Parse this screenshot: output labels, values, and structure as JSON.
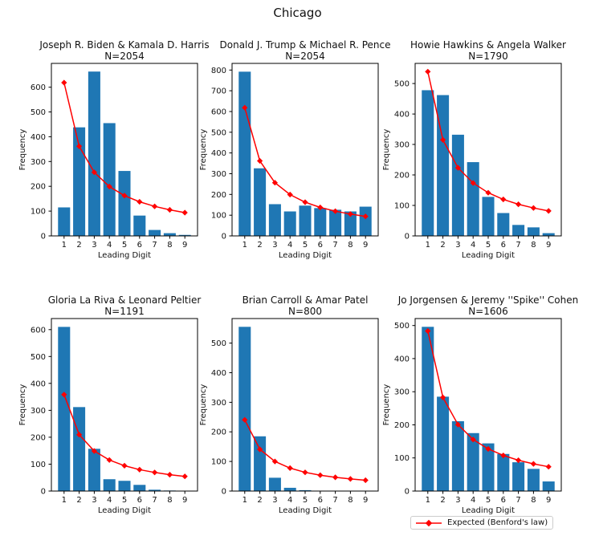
{
  "figure": {
    "title": "Chicago"
  },
  "legend": {
    "label": "Expected (Benford's law)",
    "marker": "red-diamond-line"
  },
  "colors": {
    "bar": "#1f77b4",
    "expected_line": "#ff0000",
    "axis": "#000000",
    "text": "#111111"
  },
  "chart_data": [
    {
      "type": "bar",
      "title": "Joseph R. Biden & Kamala D. Harris",
      "n_label": "N=2054",
      "xlabel": "Leading Digit",
      "ylabel": "Frequency",
      "categories": [
        1,
        2,
        3,
        4,
        5,
        6,
        7,
        8,
        9
      ],
      "series": [
        {
          "name": "Observed",
          "values": [
            115,
            438,
            663,
            455,
            262,
            82,
            24,
            11,
            4
          ]
        },
        {
          "name": "Expected (Benford's law)",
          "values": [
            618.3,
            361.7,
            256.6,
            199.1,
            162.6,
            137.5,
            119.1,
            105.1,
            94.0
          ]
        }
      ],
      "yticks": [
        0,
        100,
        200,
        300,
        400,
        500,
        600
      ],
      "ylim": [
        0,
        696
      ],
      "grid": false
    },
    {
      "type": "bar",
      "title": "Donald J. Trump & Michael R. Pence",
      "n_label": "N=2054",
      "xlabel": "Leading Digit",
      "ylabel": "Frequency",
      "categories": [
        1,
        2,
        3,
        4,
        5,
        6,
        7,
        8,
        9
      ],
      "series": [
        {
          "name": "Observed",
          "values": [
            792,
            326,
            153,
            118,
            146,
            134,
            126,
            118,
            141
          ]
        },
        {
          "name": "Expected (Benford's law)",
          "values": [
            618.3,
            361.7,
            256.6,
            199.1,
            162.6,
            137.5,
            119.1,
            105.1,
            94.0
          ]
        }
      ],
      "yticks": [
        0,
        100,
        200,
        300,
        400,
        500,
        600,
        700,
        800
      ],
      "ylim": [
        0,
        832
      ],
      "grid": false
    },
    {
      "type": "bar",
      "title": "Howie Hawkins & Angela Walker",
      "n_label": "N=1790",
      "xlabel": "Leading Digit",
      "ylabel": "Frequency",
      "categories": [
        1,
        2,
        3,
        4,
        5,
        6,
        7,
        8,
        9
      ],
      "series": [
        {
          "name": "Observed",
          "values": [
            478,
            462,
            332,
            242,
            128,
            75,
            36,
            28,
            9
          ]
        },
        {
          "name": "Expected (Benford's law)",
          "values": [
            538.8,
            315.2,
            223.6,
            173.5,
            141.7,
            119.8,
            103.8,
            91.6,
            81.9
          ]
        }
      ],
      "yticks": [
        0,
        100,
        200,
        300,
        400,
        500
      ],
      "ylim": [
        0,
        566
      ],
      "grid": false
    },
    {
      "type": "bar",
      "title": "Gloria La Riva & Leonard Peltier",
      "n_label": "N=1191",
      "xlabel": "Leading Digit",
      "ylabel": "Frequency",
      "categories": [
        1,
        2,
        3,
        4,
        5,
        6,
        7,
        8,
        9
      ],
      "series": [
        {
          "name": "Observed",
          "values": [
            610,
            312,
            157,
            44,
            38,
            23,
            5,
            2,
            0
          ]
        },
        {
          "name": "Expected (Benford's law)",
          "values": [
            358.5,
            209.7,
            148.8,
            115.4,
            94.3,
            79.7,
            69.1,
            60.9,
            54.5
          ]
        }
      ],
      "yticks": [
        0,
        100,
        200,
        300,
        400,
        500,
        600
      ],
      "ylim": [
        0,
        641
      ],
      "grid": false
    },
    {
      "type": "bar",
      "title": "Brian Carroll & Amar Patel",
      "n_label": "N=800",
      "xlabel": "Leading Digit",
      "ylabel": "Frequency",
      "categories": [
        1,
        2,
        3,
        4,
        5,
        6,
        7,
        8,
        9
      ],
      "series": [
        {
          "name": "Observed",
          "values": [
            555,
            185,
            45,
            11,
            3,
            1,
            0,
            0,
            0
          ]
        },
        {
          "name": "Expected (Benford's law)",
          "values": [
            240.8,
            140.9,
            100.0,
            77.5,
            63.3,
            53.6,
            46.4,
            40.9,
            36.6
          ]
        }
      ],
      "yticks": [
        0,
        100,
        200,
        300,
        400,
        500
      ],
      "ylim": [
        0,
        583
      ],
      "grid": false
    },
    {
      "type": "bar",
      "title": "Jo Jorgensen & Jeremy ''Spike'' Cohen",
      "n_label": "N=1606",
      "xlabel": "Leading Digit",
      "ylabel": "Frequency",
      "categories": [
        1,
        2,
        3,
        4,
        5,
        6,
        7,
        8,
        9
      ],
      "series": [
        {
          "name": "Observed",
          "values": [
            496,
            285,
            211,
            175,
            144,
            112,
            87,
            67,
            29
          ]
        },
        {
          "name": "Expected (Benford's law)",
          "values": [
            483.5,
            282.8,
            200.7,
            155.6,
            127.2,
            107.5,
            93.1,
            82.1,
            73.5
          ]
        }
      ],
      "yticks": [
        0,
        100,
        200,
        300,
        400,
        500
      ],
      "ylim": [
        0,
        521
      ],
      "grid": false
    }
  ]
}
